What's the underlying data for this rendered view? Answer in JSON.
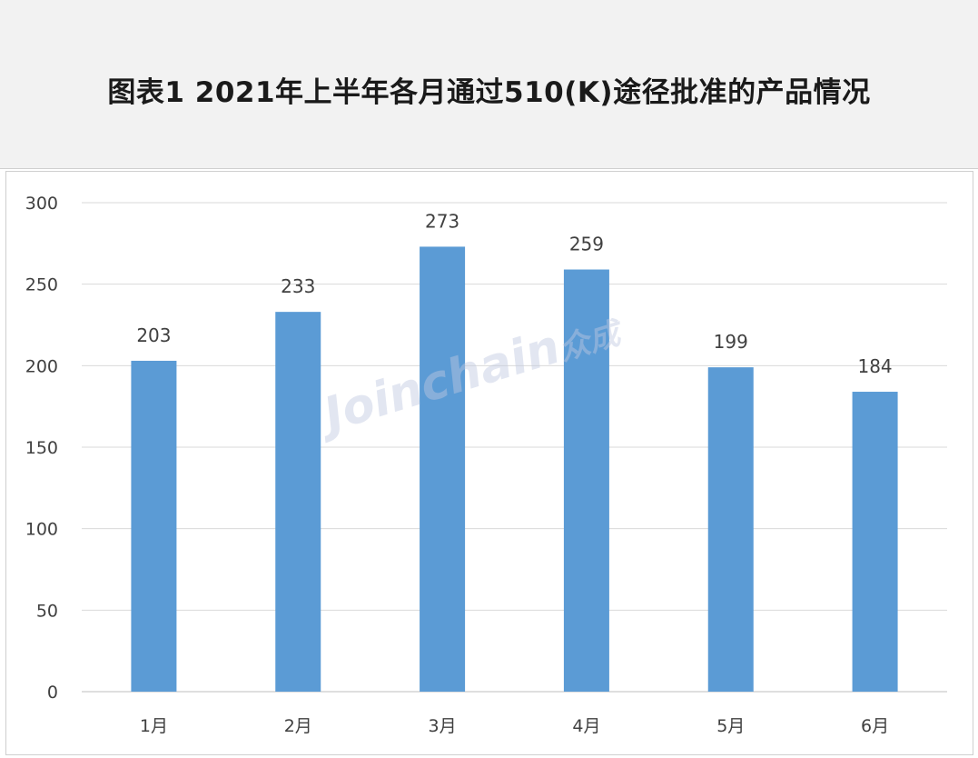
{
  "header": {
    "title": "图表1  2021年上半年各月通过510(K)途径批准的产品情况"
  },
  "watermark": {
    "text": "Joinchain",
    "mark": "众成"
  },
  "colors": {
    "bar": "#5b9bd5",
    "grid": "#d9d9d9",
    "axis": "#bfbfbf",
    "text": "#404040"
  },
  "chart_data": {
    "type": "bar",
    "title": "",
    "xlabel": "",
    "ylabel": "",
    "categories": [
      "1月",
      "2月",
      "3月",
      "4月",
      "5月",
      "6月"
    ],
    "values": [
      203,
      233,
      273,
      259,
      199,
      184
    ],
    "ylim": [
      0,
      300
    ],
    "yticks": [
      0,
      50,
      100,
      150,
      200,
      250,
      300
    ],
    "grid": true,
    "legend": "none",
    "data_labels": true
  }
}
